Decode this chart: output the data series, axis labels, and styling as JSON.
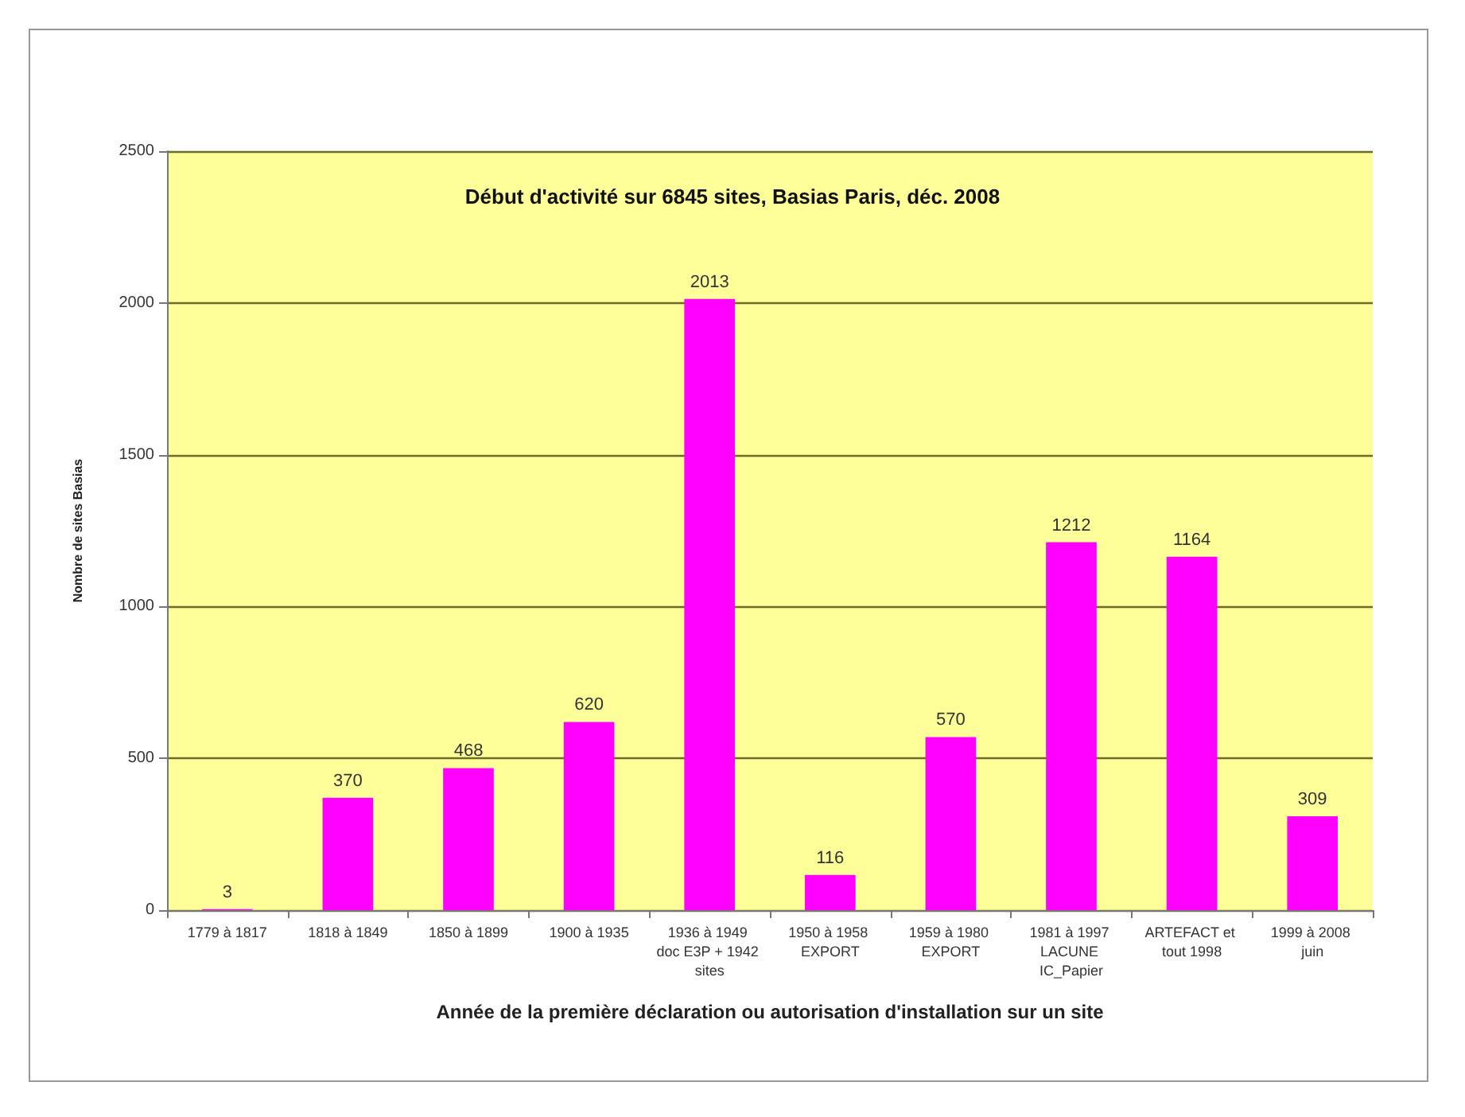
{
  "chart_data": {
    "type": "bar",
    "title": "Début d'activité sur 6845 sites, Basias Paris, déc. 2008",
    "xlabel": "Année de la première déclaration ou autorisation d'installation sur un site",
    "ylabel": "Nombre de sites Basias",
    "categories": [
      "1779 à 1817",
      "1818 à 1849",
      "1850 à 1899",
      "1900 à 1935",
      "1936 à 1949 doc E3P + 1942 sites",
      "1950 à 1958 EXPORT",
      "1959 à 1980 EXPORT",
      "1981 à 1997 LACUNE IC_Papier",
      "ARTEFACT et tout 1998",
      "1999 à 2008 juin"
    ],
    "values": [
      3,
      370,
      468,
      620,
      2013,
      116,
      570,
      1212,
      1164,
      309
    ],
    "color": "#ff00ff",
    "ylim": [
      0,
      2500
    ],
    "yticks": [
      0,
      500,
      1000,
      1500,
      2000,
      2500
    ],
    "grid": "y",
    "data_labels": true
  }
}
